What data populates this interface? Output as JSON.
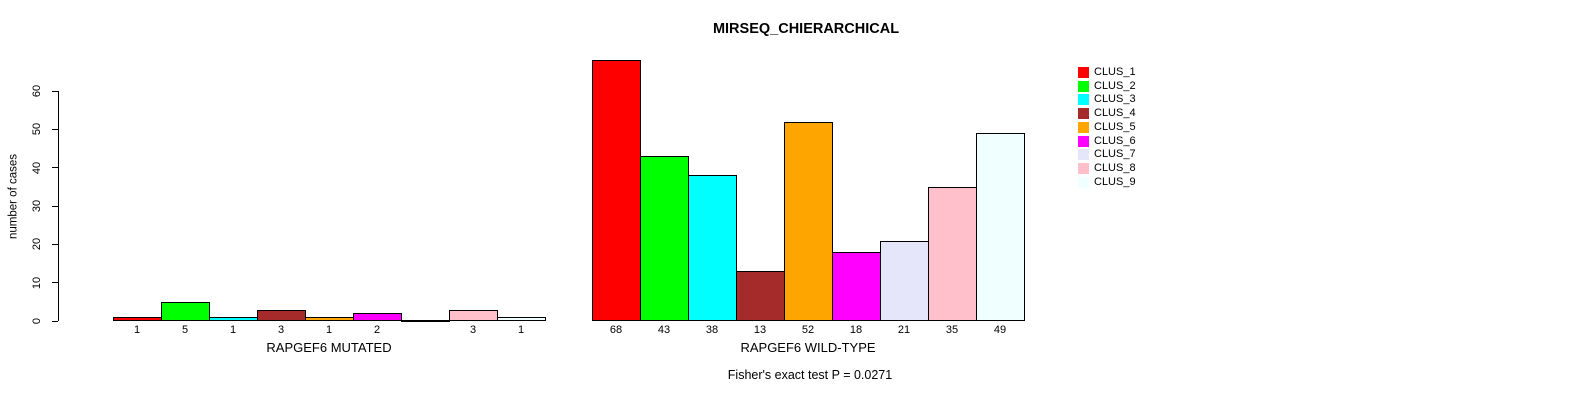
{
  "chart_data": {
    "type": "bar",
    "title": "MIRSEQ_CHIERARCHICAL",
    "ylabel": "number of cases",
    "ylim": [
      0,
      60
    ],
    "yticks": [
      0,
      10,
      20,
      30,
      40,
      50,
      60
    ],
    "grid": false,
    "legend_position": "right",
    "footnote": "Fisher's exact test P = 0.0271",
    "background_color": "#FFFFFF",
    "axis_color": "#000000",
    "bar_border_color": "#000000",
    "clusters": [
      {
        "name": "CLUS_1",
        "color": "#FF0000"
      },
      {
        "name": "CLUS_2",
        "color": "#00FF00"
      },
      {
        "name": "CLUS_3",
        "color": "#00FFFF"
      },
      {
        "name": "CLUS_4",
        "color": "#A52A2A"
      },
      {
        "name": "CLUS_5",
        "color": "#FFA500"
      },
      {
        "name": "CLUS_6",
        "color": "#FF00FF"
      },
      {
        "name": "CLUS_7",
        "color": "#E6E6FA"
      },
      {
        "name": "CLUS_8",
        "color": "#FFC0CB"
      },
      {
        "name": "CLUS_9",
        "color": "#F0FFFF"
      }
    ],
    "groups": [
      {
        "label": "RAPGEF6 MUTATED",
        "values": [
          1,
          5,
          1,
          3,
          1,
          2,
          0,
          3,
          1
        ],
        "bar_labels": [
          "1",
          "5",
          "1",
          "3",
          "1",
          "2",
          "",
          "3",
          "1"
        ]
      },
      {
        "label": "RAPGEF6 WILD-TYPE",
        "values": [
          68,
          43,
          38,
          13,
          52,
          18,
          21,
          35,
          49
        ],
        "bar_labels": [
          "68",
          "43",
          "38",
          "13",
          "52",
          "18",
          "21",
          "35",
          "49"
        ]
      }
    ]
  }
}
